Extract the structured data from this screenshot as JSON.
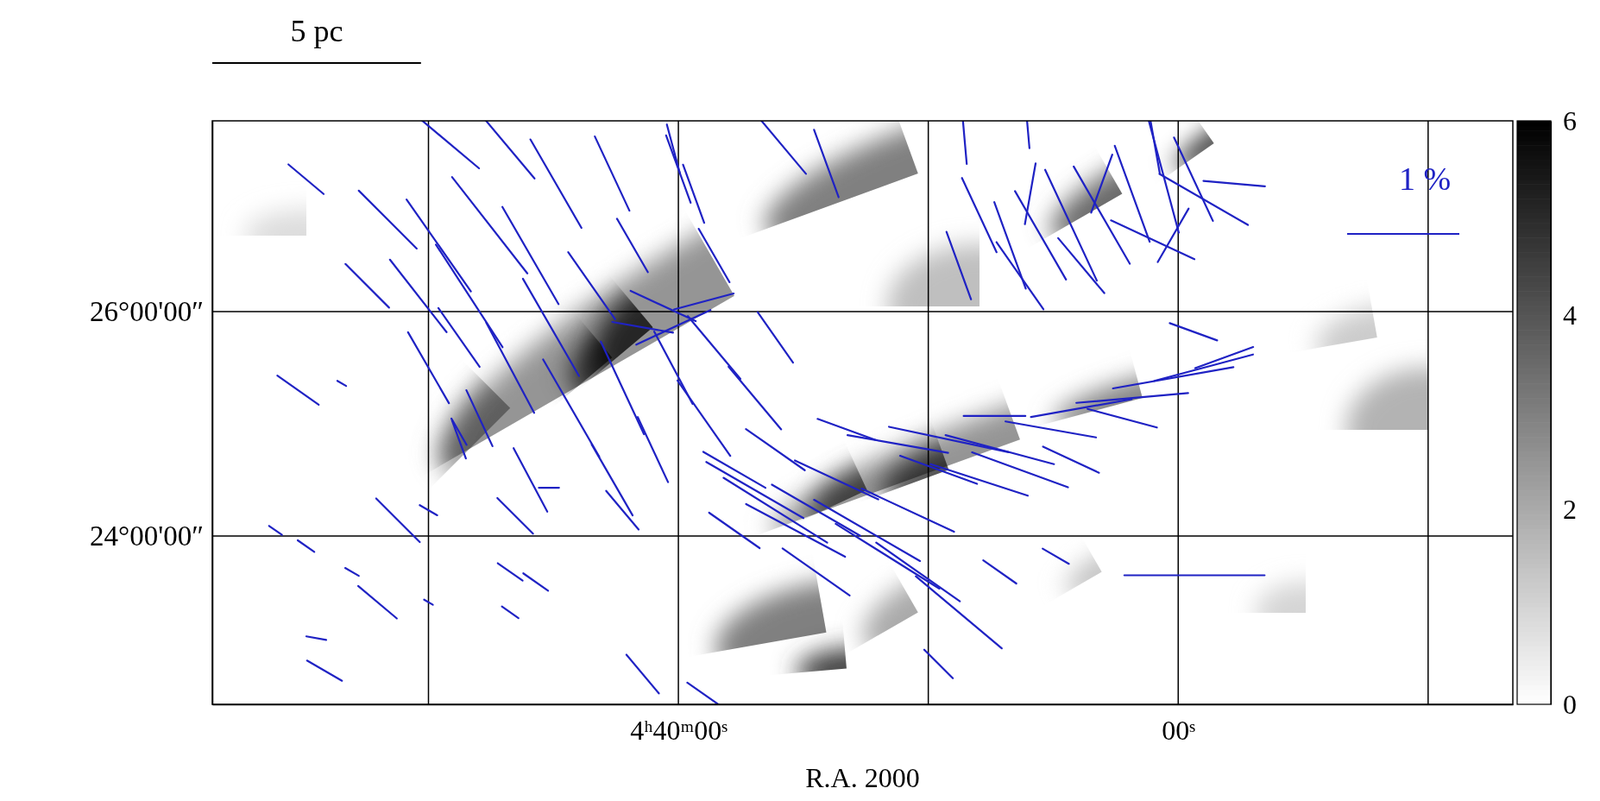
{
  "chart_data": {
    "type": "vector",
    "xlabel": "R.A. 2000",
    "xlim": [
      58.65,
      6.61
    ],
    "ylim": [
      22.5,
      27.7
    ],
    "xticks": [
      {
        "value": 40,
        "label": "4ʰ40ᵐ00ˢ"
      },
      {
        "value": 20,
        "label": "00ˢ"
      }
    ],
    "yticks": [
      {
        "value": 24,
        "label": "24°00'00″"
      },
      {
        "value": 26,
        "label": "26°00'00″"
      }
    ],
    "xgrid": [
      50,
      40,
      30,
      20,
      10
    ],
    "grid": true,
    "color": "#1f22c4",
    "scale_bar": {
      "label": "5 pc",
      "length": 1.86
    },
    "pol_scale": {
      "label": "1 %",
      "value": 1
    },
    "colorbar": {
      "range": [
        0,
        6
      ],
      "ticks": [
        0,
        2,
        4,
        6
      ]
    },
    "clouds": [
      {
        "ra": 37.76,
        "dec": 26.14,
        "a": 3.0,
        "b": 0.64,
        "pa": 120,
        "av": 2.5
      },
      {
        "ra": 41.02,
        "dec": 25.86,
        "a": 0.64,
        "b": 0.36,
        "pa": 130,
        "av": 4.5
      },
      {
        "ra": 42.65,
        "dec": 25.59,
        "a": 0.45,
        "b": 0.27,
        "pa": 130,
        "av": 4
      },
      {
        "ra": 30.41,
        "dec": 27.23,
        "a": 1.45,
        "b": 0.41,
        "pa": 110,
        "av": 3
      },
      {
        "ra": 18.57,
        "dec": 27.5,
        "a": 0.41,
        "b": 0.09,
        "pa": 125,
        "av": 6
      },
      {
        "ra": 22.24,
        "dec": 27.05,
        "a": 0.73,
        "b": 0.23,
        "pa": 120,
        "av": 3.5
      },
      {
        "ra": 26.33,
        "dec": 24.86,
        "a": 2.36,
        "b": 0.32,
        "pa": 110,
        "av": 2.5
      },
      {
        "ra": 29.18,
        "dec": 24.59,
        "a": 0.64,
        "b": 0.23,
        "pa": 110,
        "av": 4
      },
      {
        "ra": 32.45,
        "dec": 24.41,
        "a": 0.55,
        "b": 0.23,
        "pa": 115,
        "av": 3.5
      },
      {
        "ra": 21.43,
        "dec": 25.23,
        "a": 0.82,
        "b": 0.18,
        "pa": 105,
        "av": 3
      },
      {
        "ra": 34.08,
        "dec": 23.14,
        "a": 1.0,
        "b": 0.45,
        "pa": 100,
        "av": 3
      },
      {
        "ra": 33.27,
        "dec": 22.82,
        "a": 0.45,
        "b": 0.18,
        "pa": 95,
        "av": 4.5
      },
      {
        "ra": 10.0,
        "dec": 24.95,
        "a": 0.73,
        "b": 0.55,
        "pa": 90,
        "av": 1.8
      },
      {
        "ra": 12.04,
        "dec": 25.77,
        "a": 0.55,
        "b": 0.27,
        "pa": 100,
        "av": 1.2
      },
      {
        "ra": 46.73,
        "dec": 25.14,
        "a": 0.82,
        "b": 0.36,
        "pa": 135,
        "av": 2.2
      },
      {
        "ra": 30.41,
        "dec": 23.32,
        "a": 0.55,
        "b": 0.27,
        "pa": 120,
        "av": 2
      },
      {
        "ra": 54.9,
        "dec": 26.68,
        "a": 0.55,
        "b": 0.23,
        "pa": 90,
        "av": 0.8
      },
      {
        "ra": 14.9,
        "dec": 23.32,
        "a": 0.45,
        "b": 0.27,
        "pa": 90,
        "av": 1
      },
      {
        "ra": 27.96,
        "dec": 26.05,
        "a": 0.82,
        "b": 0.55,
        "pa": 90,
        "av": 1.5
      },
      {
        "ra": 23.06,
        "dec": 23.68,
        "a": 0.36,
        "b": 0.14,
        "pa": 120,
        "av": 1.5
      }
    ],
    "vectors": [
      {
        "ra": 49.92,
        "dec": 27.64,
        "p": 1.13,
        "pa": 50
      },
      {
        "ra": 46.94,
        "dec": 27.5,
        "p": 0.82,
        "pa": 40
      },
      {
        "ra": 44.9,
        "dec": 27.14,
        "p": 0.91,
        "pa": 30
      },
      {
        "ra": 42.65,
        "dec": 27.23,
        "p": 0.73,
        "pa": 25
      },
      {
        "ra": 40.0,
        "dec": 27.27,
        "p": 0.64,
        "pa": 20
      },
      {
        "ra": 54.9,
        "dec": 27.18,
        "p": 0.41,
        "pa": 50
      },
      {
        "ra": 51.63,
        "dec": 26.82,
        "p": 0.73,
        "pa": 45
      },
      {
        "ra": 49.59,
        "dec": 26.59,
        "p": 1.0,
        "pa": 35
      },
      {
        "ra": 47.55,
        "dec": 26.77,
        "p": 1.09,
        "pa": 38
      },
      {
        "ra": 45.92,
        "dec": 26.5,
        "p": 1.0,
        "pa": 30
      },
      {
        "ra": 48.37,
        "dec": 26.14,
        "p": 1.09,
        "pa": 33
      },
      {
        "ra": 50.41,
        "dec": 26.14,
        "p": 0.82,
        "pa": 38
      },
      {
        "ra": 52.45,
        "dec": 26.23,
        "p": 0.55,
        "pa": 45
      },
      {
        "ra": 45.1,
        "dec": 25.86,
        "p": 1.0,
        "pa": 30
      },
      {
        "ra": 46.73,
        "dec": 25.5,
        "p": 0.91,
        "pa": 28
      },
      {
        "ra": 48.78,
        "dec": 25.77,
        "p": 0.64,
        "pa": 35
      },
      {
        "ra": 50.0,
        "dec": 25.5,
        "p": 0.73,
        "pa": 30
      },
      {
        "ra": 43.47,
        "dec": 26.23,
        "p": 0.73,
        "pa": 35
      },
      {
        "ra": 41.84,
        "dec": 26.59,
        "p": 0.55,
        "pa": 30
      },
      {
        "ra": 44.29,
        "dec": 25.14,
        "p": 1.0,
        "pa": 30
      },
      {
        "ra": 42.24,
        "dec": 25.32,
        "p": 0.91,
        "pa": 25
      },
      {
        "ra": 40.2,
        "dec": 25.5,
        "p": 0.73,
        "pa": 28
      },
      {
        "ra": 38.57,
        "dec": 25.68,
        "p": 0.73,
        "pa": 40
      },
      {
        "ra": 47.96,
        "dec": 25.05,
        "p": 0.55,
        "pa": 25
      },
      {
        "ra": 48.78,
        "dec": 24.86,
        "p": 0.36,
        "pa": 20
      },
      {
        "ra": 45.92,
        "dec": 24.5,
        "p": 0.64,
        "pa": 28
      },
      {
        "ra": 42.65,
        "dec": 24.5,
        "p": 0.73,
        "pa": 30
      },
      {
        "ra": 41.02,
        "dec": 24.77,
        "p": 0.64,
        "pa": 25
      },
      {
        "ra": 38.98,
        "dec": 25.05,
        "p": 0.82,
        "pa": 35
      },
      {
        "ra": 36.94,
        "dec": 25.23,
        "p": 0.73,
        "pa": 40
      },
      {
        "ra": 36.12,
        "dec": 25.77,
        "p": 0.55,
        "pa": 35
      },
      {
        "ra": 38.57,
        "dec": 26.5,
        "p": 0.55,
        "pa": 30
      },
      {
        "ra": 35.92,
        "dec": 27.5,
        "p": 0.71,
        "pa": 40
      },
      {
        "ra": 34.08,
        "dec": 27.32,
        "p": 0.64,
        "pa": 20
      },
      {
        "ra": 40.2,
        "dec": 27.45,
        "p": 0.45,
        "pa": 15
      },
      {
        "ra": 39.39,
        "dec": 27.05,
        "p": 0.55,
        "pa": 20
      },
      {
        "ra": 40.61,
        "dec": 26.05,
        "p": 0.64,
        "pa": 65
      },
      {
        "ra": 40.2,
        "dec": 25.86,
        "p": 0.73,
        "pa": 115
      },
      {
        "ra": 41.43,
        "dec": 25.86,
        "p": 0.55,
        "pa": 80
      },
      {
        "ra": 38.98,
        "dec": 26.09,
        "p": 0.55,
        "pa": 105
      },
      {
        "ra": 55.22,
        "dec": 25.3,
        "p": 0.45,
        "pa": 55
      },
      {
        "ra": 53.47,
        "dec": 25.36,
        "p": 0.09,
        "pa": 60
      },
      {
        "ra": 56.12,
        "dec": 24.05,
        "p": 0.14,
        "pa": 55
      },
      {
        "ra": 54.9,
        "dec": 23.91,
        "p": 0.18,
        "pa": 55
      },
      {
        "ra": 51.22,
        "dec": 24.14,
        "p": 0.55,
        "pa": 45
      },
      {
        "ra": 50.0,
        "dec": 24.23,
        "p": 0.18,
        "pa": 60
      },
      {
        "ra": 53.06,
        "dec": 23.68,
        "p": 0.14,
        "pa": 60
      },
      {
        "ra": 52.04,
        "dec": 23.41,
        "p": 0.45,
        "pa": 50
      },
      {
        "ra": 50.0,
        "dec": 23.41,
        "p": 0.09,
        "pa": 60
      },
      {
        "ra": 46.73,
        "dec": 23.68,
        "p": 0.27,
        "pa": 55
      },
      {
        "ra": 45.71,
        "dec": 23.59,
        "p": 0.27,
        "pa": 55
      },
      {
        "ra": 54.49,
        "dec": 23.09,
        "p": 0.18,
        "pa": 80
      },
      {
        "ra": 54.16,
        "dec": 22.8,
        "p": 0.36,
        "pa": 60
      },
      {
        "ra": 46.73,
        "dec": 23.32,
        "p": 0.18,
        "pa": 55
      },
      {
        "ra": 41.43,
        "dec": 22.77,
        "p": 0.45,
        "pa": 40
      },
      {
        "ra": 38.98,
        "dec": 22.59,
        "p": 0.36,
        "pa": 55
      },
      {
        "ra": 45.18,
        "dec": 24.43,
        "p": 0.18,
        "pa": 90
      },
      {
        "ra": 48.78,
        "dec": 24.93,
        "p": 0.27,
        "pa": 30
      },
      {
        "ra": 46.53,
        "dec": 24.18,
        "p": 0.45,
        "pa": 45
      },
      {
        "ra": 42.24,
        "dec": 24.23,
        "p": 0.45,
        "pa": 40
      },
      {
        "ra": 37.76,
        "dec": 24.59,
        "p": 0.64,
        "pa": 60
      },
      {
        "ra": 36.94,
        "dec": 24.41,
        "p": 1.0,
        "pa": 60
      },
      {
        "ra": 36.12,
        "dec": 24.23,
        "p": 1.09,
        "pa": 58
      },
      {
        "ra": 35.31,
        "dec": 24.05,
        "p": 1.0,
        "pa": 62
      },
      {
        "ra": 34.49,
        "dec": 24.23,
        "p": 0.91,
        "pa": 60
      },
      {
        "ra": 33.67,
        "dec": 24.5,
        "p": 0.82,
        "pa": 65
      },
      {
        "ra": 36.12,
        "dec": 24.77,
        "p": 0.64,
        "pa": 55
      },
      {
        "ra": 32.45,
        "dec": 24.05,
        "p": 1.09,
        "pa": 60
      },
      {
        "ra": 31.63,
        "dec": 23.82,
        "p": 1.09,
        "pa": 58
      },
      {
        "ra": 30.41,
        "dec": 23.68,
        "p": 0.91,
        "pa": 55
      },
      {
        "ra": 28.78,
        "dec": 23.32,
        "p": 1.0,
        "pa": 50
      },
      {
        "ra": 30.82,
        "dec": 24.23,
        "p": 0.91,
        "pa": 65
      },
      {
        "ra": 33.27,
        "dec": 24.95,
        "p": 0.55,
        "pa": 70
      },
      {
        "ra": 27.14,
        "dec": 23.68,
        "p": 0.36,
        "pa": 55
      },
      {
        "ra": 24.9,
        "dec": 23.82,
        "p": 0.27,
        "pa": 60
      },
      {
        "ra": 29.59,
        "dec": 22.86,
        "p": 0.36,
        "pa": 45
      },
      {
        "ra": 34.49,
        "dec": 23.68,
        "p": 0.73,
        "pa": 55
      },
      {
        "ra": 37.76,
        "dec": 24.05,
        "p": 0.55,
        "pa": 55
      },
      {
        "ra": 31.22,
        "dec": 24.82,
        "p": 0.91,
        "pa": 80
      },
      {
        "ra": 29.18,
        "dec": 24.86,
        "p": 1.09,
        "pa": 78
      },
      {
        "ra": 27.14,
        "dec": 24.77,
        "p": 1.0,
        "pa": 75
      },
      {
        "ra": 26.33,
        "dec": 24.59,
        "p": 0.91,
        "pa": 70
      },
      {
        "ra": 27.96,
        "dec": 24.5,
        "p": 0.91,
        "pa": 72
      },
      {
        "ra": 25.1,
        "dec": 24.95,
        "p": 0.82,
        "pa": 80
      },
      {
        "ra": 23.88,
        "dec": 25.14,
        "p": 0.91,
        "pa": 100
      },
      {
        "ra": 21.84,
        "dec": 25.23,
        "p": 1.0,
        "pa": 95
      },
      {
        "ra": 20.2,
        "dec": 25.41,
        "p": 1.09,
        "pa": 100
      },
      {
        "ra": 18.98,
        "dec": 25.5,
        "p": 0.91,
        "pa": 105
      },
      {
        "ra": 18.16,
        "dec": 25.59,
        "p": 0.55,
        "pa": 110
      },
      {
        "ra": 27.35,
        "dec": 25.07,
        "p": 0.55,
        "pa": 90
      },
      {
        "ra": 19.39,
        "dec": 25.82,
        "p": 0.45,
        "pa": 70
      },
      {
        "ra": 22.24,
        "dec": 25.05,
        "p": 0.64,
        "pa": 75
      },
      {
        "ra": 24.29,
        "dec": 24.68,
        "p": 0.55,
        "pa": 65
      },
      {
        "ra": 29.59,
        "dec": 24.59,
        "p": 0.73,
        "pa": 70
      },
      {
        "ra": 28.57,
        "dec": 27.59,
        "p": 0.55,
        "pa": 5
      },
      {
        "ra": 26.04,
        "dec": 27.68,
        "p": 0.45,
        "pa": 5
      },
      {
        "ra": 27.96,
        "dec": 26.86,
        "p": 0.73,
        "pa": 25
      },
      {
        "ra": 26.73,
        "dec": 26.59,
        "p": 0.82,
        "pa": 20
      },
      {
        "ra": 25.51,
        "dec": 26.68,
        "p": 0.91,
        "pa": 30
      },
      {
        "ra": 24.29,
        "dec": 26.77,
        "p": 1.09,
        "pa": 25
      },
      {
        "ra": 23.06,
        "dec": 26.86,
        "p": 1.0,
        "pa": 30
      },
      {
        "ra": 21.84,
        "dec": 27.05,
        "p": 0.91,
        "pa": 20
      },
      {
        "ra": 20.61,
        "dec": 27.23,
        "p": 1.09,
        "pa": 15
      },
      {
        "ra": 19.39,
        "dec": 27.18,
        "p": 0.82,
        "pa": 25
      },
      {
        "ra": 21.02,
        "dec": 27.59,
        "p": 0.73,
        "pa": 10
      },
      {
        "ra": 28.78,
        "dec": 26.41,
        "p": 0.64,
        "pa": 20
      },
      {
        "ra": 26.33,
        "dec": 26.32,
        "p": 0.73,
        "pa": 35
      },
      {
        "ra": 23.88,
        "dec": 26.41,
        "p": 0.64,
        "pa": 40
      },
      {
        "ra": 21.02,
        "dec": 26.64,
        "p": 0.82,
        "pa": 65
      },
      {
        "ra": 18.98,
        "dec": 27.0,
        "p": 0.91,
        "pa": 60
      },
      {
        "ra": 17.76,
        "dec": 27.14,
        "p": 0.55,
        "pa": 85
      },
      {
        "ra": 23.06,
        "dec": 27.14,
        "p": 0.55,
        "pa": 160
      },
      {
        "ra": 20.2,
        "dec": 26.68,
        "p": 0.55,
        "pa": 150
      },
      {
        "ra": 25.92,
        "dec": 27.05,
        "p": 0.55,
        "pa": 170
      },
      {
        "ra": 19.35,
        "dec": 23.65,
        "p": 1.25,
        "pa": 90
      }
    ]
  }
}
